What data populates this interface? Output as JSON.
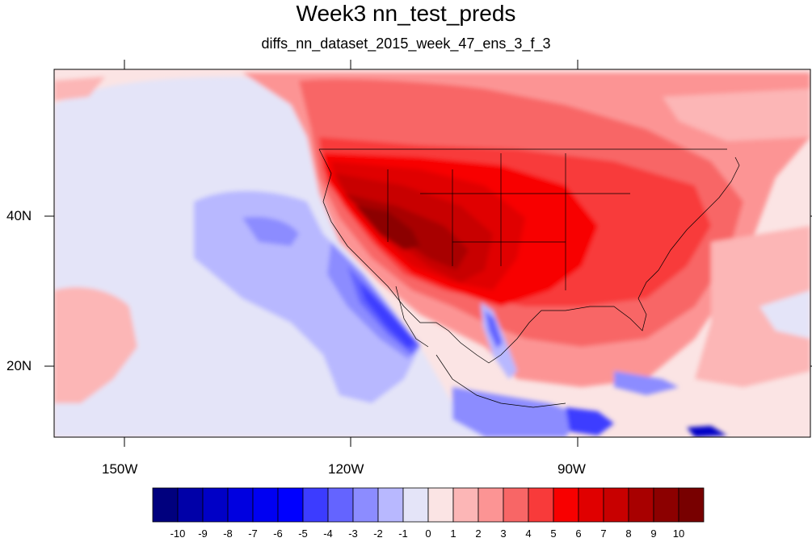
{
  "title": "Week3 nn_test_preds",
  "subtitle": "diffs_nn_dataset_2015_week_47_ens_3_f_3",
  "map": {
    "lat_ticks": [
      "40N",
      "20N"
    ],
    "lon_ticks": [
      "150W",
      "120W",
      "90W"
    ]
  },
  "colorbar": {
    "labels": [
      "-10",
      "-9",
      "-8",
      "-7",
      "-6",
      "-5",
      "-4",
      "-3",
      "-2",
      "-1",
      "0",
      "1",
      "2",
      "3",
      "4",
      "5",
      "6",
      "7",
      "8",
      "9",
      "10"
    ],
    "colors": [
      "#00007e",
      "#0000a8",
      "#0000c6",
      "#0000e0",
      "#0000f2",
      "#0000ff",
      "#3c3cff",
      "#6464ff",
      "#8c8cff",
      "#b8b8ff",
      "#e4e4f8",
      "#fbe4e4",
      "#fcb6b6",
      "#fc9494",
      "#f86666",
      "#f83a3a",
      "#f80000",
      "#e00000",
      "#c80000",
      "#a80000",
      "#8c0000",
      "#780000"
    ]
  }
}
